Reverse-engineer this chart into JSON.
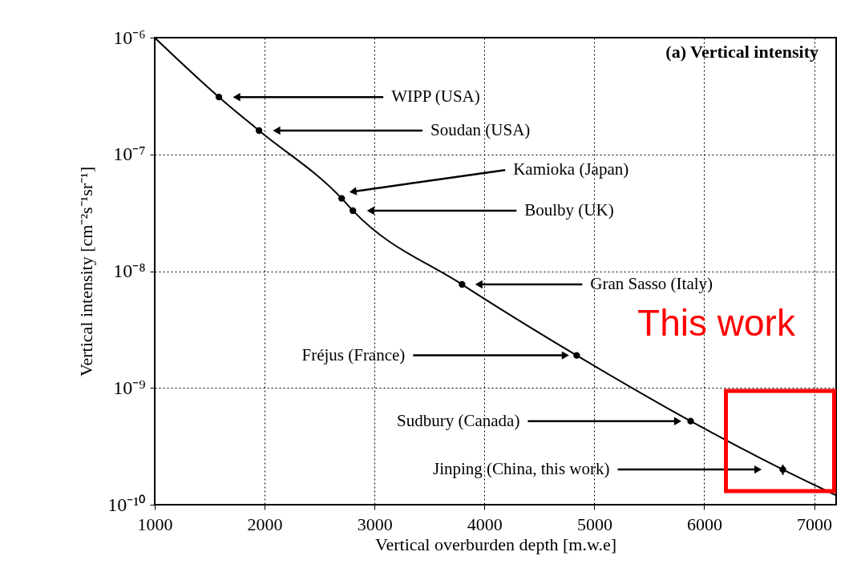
{
  "chart_data": {
    "type": "scatter",
    "title": "(a) Vertical intensity",
    "xlabel": "Vertical overburden depth [m.w.e]",
    "ylabel": "Vertical intensity [cm⁻²s⁻¹sr⁻¹]",
    "xlim": [
      1000,
      7200
    ],
    "xticks": [
      1000,
      2000,
      3000,
      4000,
      5000,
      6000,
      7000
    ],
    "ylim": [
      1e-10,
      1e-06
    ],
    "yticks": [
      {
        "value": 1e-10,
        "label": "10⁻¹⁰"
      },
      {
        "value": 1e-09,
        "label": "10⁻⁹"
      },
      {
        "value": 1e-08,
        "label": "10⁻⁸"
      },
      {
        "value": 1e-07,
        "label": "10⁻⁷"
      },
      {
        "value": 1e-06,
        "label": "10⁻⁶"
      }
    ],
    "log": "y",
    "grid": true,
    "series": [
      {
        "marker": "circle",
        "color": "#000000",
        "x": [
          1584,
          1949,
          2701,
          2803,
          3796,
          4839,
          5876,
          6715
        ],
        "values": [
          3.1e-07,
          1.6e-07,
          4.2e-08,
          3.3e-08,
          7.7e-09,
          1.9e-09,
          5.2e-10,
          2e-10
        ],
        "errors": [
          null,
          null,
          null,
          null,
          null,
          null,
          null,
          [
            1.8e-10,
            2.2e-10
          ]
        ]
      },
      {
        "type": "line",
        "color": "#000000",
        "line_style": "solid",
        "x": [
          1000,
          1584,
          1949,
          2701,
          2803,
          3796,
          4839,
          5876,
          6715,
          7200
        ],
        "values": [
          1e-06,
          3.1e-07,
          1.6e-07,
          4.2e-08,
          3.3e-08,
          7.7e-09,
          1.9e-09,
          5.2e-10,
          2e-10,
          1.2e-10
        ]
      }
    ],
    "annotations": [
      {
        "text": "WIPP (USA)",
        "x": 1745,
        "y": 3.1e-07
      },
      {
        "text": "Soudan (USA)",
        "x": 2109,
        "y": 1.6e-07
      },
      {
        "text": "Kamioka (Japan)",
        "x": 2803,
        "y": 4.8e-08
      },
      {
        "text": "Boulby (UK)",
        "x": 2964,
        "y": 3.3e-08
      },
      {
        "text": "Gran Sasso (Italy)",
        "x": 3949,
        "y": 7.7e-09
      },
      {
        "text": "Fréjus (France)",
        "x": 4737,
        "y": 1.9e-09
      },
      {
        "text": "Sudbury (Canada)",
        "x": 5759,
        "y": 5.2e-10
      },
      {
        "text": "Jinping (China, this work)",
        "x": 6489,
        "y": 2e-10
      },
      "This work"
    ]
  }
}
